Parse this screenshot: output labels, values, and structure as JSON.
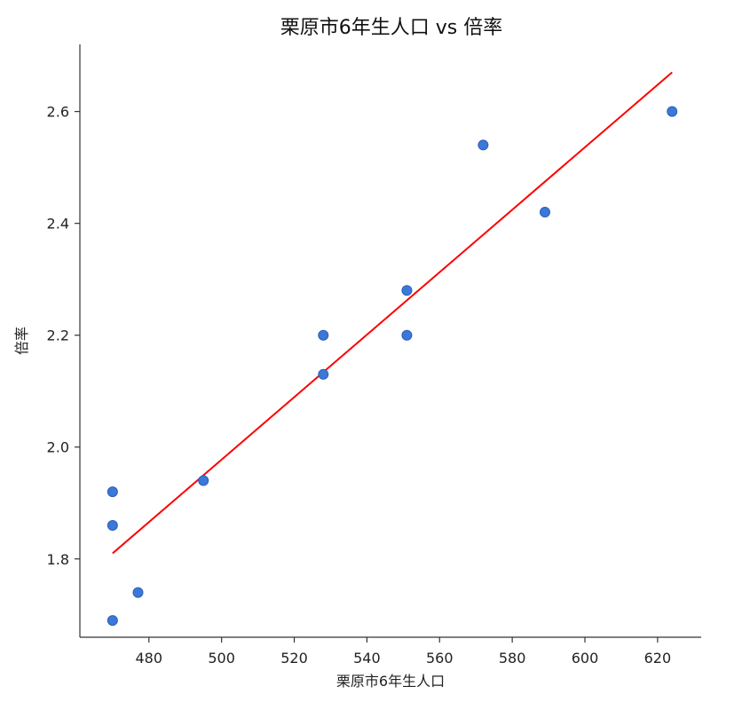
{
  "chart_data": {
    "type": "scatter",
    "title": "栗原市6年生人口 vs 倍率",
    "xlabel": "栗原市6年生人口",
    "ylabel": "倍率",
    "xlim": [
      461,
      632
    ],
    "ylim": [
      1.66,
      2.72
    ],
    "xticks": [
      480,
      500,
      520,
      540,
      560,
      580,
      600,
      620
    ],
    "yticks": [
      1.8,
      2.0,
      2.2,
      2.4,
      2.6
    ],
    "xtick_labels": [
      "480",
      "500",
      "520",
      "540",
      "560",
      "580",
      "600",
      "620"
    ],
    "ytick_labels": [
      "1.8",
      "2.0",
      "2.2",
      "2.4",
      "2.6"
    ],
    "grid": false,
    "point_color": "#3b78d8",
    "line_color": "#ff0000",
    "series": [
      {
        "type": "scatter",
        "points": [
          {
            "x": 470,
            "y": 1.92
          },
          {
            "x": 470,
            "y": 1.86
          },
          {
            "x": 470,
            "y": 1.69
          },
          {
            "x": 477,
            "y": 1.74
          },
          {
            "x": 495,
            "y": 1.94
          },
          {
            "x": 528,
            "y": 2.2
          },
          {
            "x": 528,
            "y": 2.13
          },
          {
            "x": 551,
            "y": 2.28
          },
          {
            "x": 551,
            "y": 2.2
          },
          {
            "x": 572,
            "y": 2.54
          },
          {
            "x": 589,
            "y": 2.42
          },
          {
            "x": 624,
            "y": 2.6
          }
        ]
      },
      {
        "type": "line",
        "points": [
          {
            "x": 470,
            "y": 1.81
          },
          {
            "x": 624,
            "y": 2.67
          }
        ]
      }
    ]
  }
}
